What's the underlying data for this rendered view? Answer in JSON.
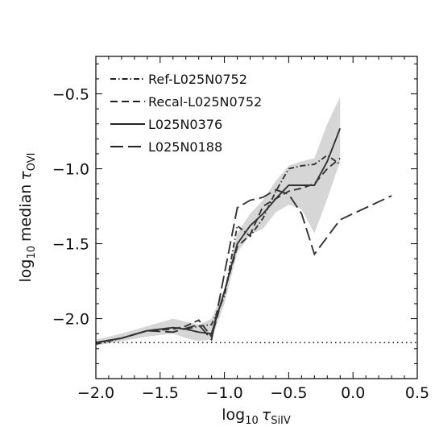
{
  "chart_data": {
    "type": "line",
    "title": "",
    "xlabel": {
      "prefix": "log",
      "sub1": "10",
      "sym": "τ",
      "sub2": "SiIV"
    },
    "ylabel": {
      "prefix": "log",
      "sub1": "10",
      "word": "median",
      "sym": "τ",
      "sub2": "OVI"
    },
    "xlim": [
      -2.0,
      0.5
    ],
    "ylim": [
      -2.4,
      -0.25
    ],
    "xticks": [
      {
        "v": -2.0,
        "label": "−2.0"
      },
      {
        "v": -1.5,
        "label": "−1.5"
      },
      {
        "v": -1.0,
        "label": "−1.0"
      },
      {
        "v": -0.5,
        "label": "−0.5"
      },
      {
        "v": 0.0,
        "label": "0.0"
      },
      {
        "v": 0.5,
        "label": "0.5"
      }
    ],
    "yticks": [
      {
        "v": -2.0,
        "label": "−2.0"
      },
      {
        "v": -1.5,
        "label": "−1.5"
      },
      {
        "v": -1.0,
        "label": "−1.0"
      },
      {
        "v": -0.5,
        "label": "−0.5"
      }
    ],
    "grid": false,
    "legend_position": "top-left",
    "reference_line": {
      "y": -2.16,
      "style": "dotted"
    },
    "band": {
      "x": [
        -2.0,
        -1.8,
        -1.6,
        -1.4,
        -1.3,
        -1.2,
        -1.1,
        -1.0,
        -0.9,
        -0.8,
        -0.7,
        -0.6,
        -0.5,
        -0.4,
        -0.3,
        -0.2,
        -0.1
      ],
      "lower": [
        -2.18,
        -2.15,
        -2.12,
        -2.1,
        -2.13,
        -2.15,
        -2.14,
        -1.9,
        -1.56,
        -1.44,
        -1.4,
        -1.29,
        -1.24,
        -1.27,
        -1.43,
        -1.2,
        -0.95
      ],
      "upper": [
        -2.14,
        -2.1,
        -2.05,
        -2.0,
        -2.02,
        -2.04,
        -2.0,
        -1.8,
        -1.43,
        -1.3,
        -1.21,
        -1.08,
        -0.98,
        -0.95,
        -0.93,
        -0.7,
        -0.52
      ]
    },
    "series": [
      {
        "name": "Ref-L025N0752",
        "dash": "dashdot",
        "x": [
          -2.0,
          -1.8,
          -1.6,
          -1.4,
          -1.3,
          -1.2,
          -1.1,
          -1.0,
          -0.9,
          -0.8,
          -0.7,
          -0.6,
          -0.5,
          -0.4,
          -0.3,
          -0.2,
          -0.1
        ],
        "y": [
          -2.17,
          -2.13,
          -2.08,
          -2.06,
          -2.07,
          -2.05,
          -2.04,
          -1.85,
          -1.38,
          -1.45,
          -1.33,
          -1.15,
          -1.0,
          -0.98,
          -0.97,
          -0.91,
          -0.97
        ]
      },
      {
        "name": "Recal-L025N0752",
        "dash": "dashed",
        "x": [
          -2.0,
          -1.8,
          -1.6,
          -1.4,
          -1.3,
          -1.2,
          -1.1,
          -1.0,
          -0.9,
          -0.8,
          -0.7,
          -0.6,
          -0.5,
          -0.4,
          -0.3,
          -0.2,
          -0.1
        ],
        "y": [
          -2.16,
          -2.13,
          -2.08,
          -2.07,
          -2.05,
          -2.01,
          -2.12,
          -1.82,
          -1.52,
          -1.44,
          -1.25,
          -1.2,
          -1.15,
          -1.13,
          -1.1,
          -1.0,
          -0.93
        ]
      },
      {
        "name": "L025N0376",
        "dash": "solid",
        "x": [
          -2.0,
          -1.8,
          -1.6,
          -1.4,
          -1.3,
          -1.2,
          -1.1,
          -1.0,
          -0.9,
          -0.8,
          -0.7,
          -0.6,
          -0.5,
          -0.4,
          -0.3,
          -0.2,
          -0.1
        ],
        "y": [
          -2.16,
          -2.13,
          -2.08,
          -2.06,
          -2.07,
          -2.09,
          -2.1,
          -1.82,
          -1.5,
          -1.38,
          -1.3,
          -1.2,
          -1.11,
          -1.11,
          -1.11,
          -0.95,
          -0.73
        ]
      },
      {
        "name": "L025N0188",
        "dash": "longdash",
        "x": [
          -2.0,
          -1.8,
          -1.6,
          -1.4,
          -1.2,
          -1.1,
          -0.9,
          -0.8,
          -0.7,
          -0.6,
          -0.5,
          -0.4,
          -0.3,
          -0.1,
          0.3
        ],
        "y": [
          -2.16,
          -2.13,
          -2.08,
          -2.09,
          -2.04,
          -2.14,
          -1.26,
          -1.21,
          -1.19,
          -1.14,
          -1.17,
          -1.3,
          -1.57,
          -1.34,
          -1.18
        ]
      }
    ]
  }
}
